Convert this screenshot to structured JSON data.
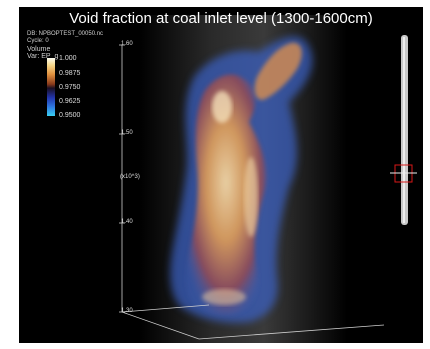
{
  "title": "Void fraction at coal inlet level (1300-1600cm)",
  "meta": {
    "db": "DB: NPBOPTEST_00050.nc",
    "cycle": "Cycle: 0",
    "plot_kind": "Volume",
    "var": "Var: EP_g"
  },
  "legend": {
    "ticks": [
      "1.000",
      "0.9875",
      "0.9750",
      "0.9625",
      "0.9500"
    ],
    "colors": [
      "#fdfdf2",
      "#e0913f",
      "#1a0f22",
      "#2f78e0",
      "#39d0f2"
    ]
  },
  "axis": {
    "multiplier": "(x10^3)",
    "y_ticks": [
      "1.60",
      "1.50",
      "1.40",
      "1.30"
    ]
  }
}
